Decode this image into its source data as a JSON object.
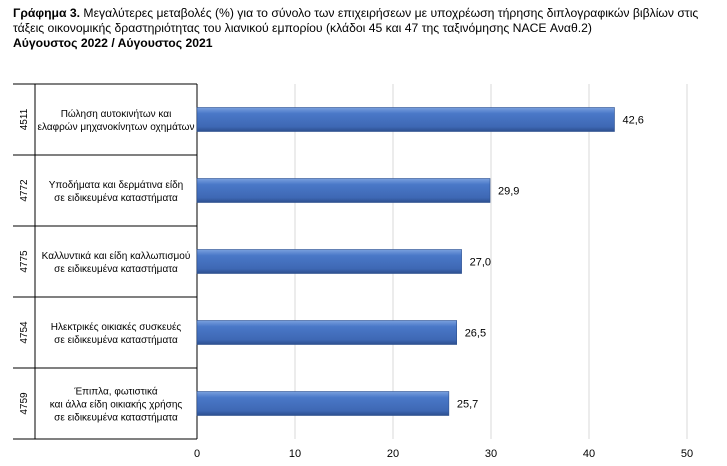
{
  "chart_data": {
    "type": "bar",
    "orientation": "horizontal",
    "title_prefix": "Γράφημα 3.",
    "title": "Μεγαλύτερες μεταβολές (%) για το σύνολο των επιχειρήσεων με υποχρέωση τήρησης διπλογραφικών βιβλίων στις τάξεις οικονομικής δραστηριότητας του λιανικού εμπορίου (κλάδοι 45 και 47 της ταξινόμησης NACE Αναθ.2)",
    "subtitle": "Αύγουστος 2022 / Αύγουστος 2021",
    "categories": [
      {
        "code": "4511",
        "lines": [
          "Πώληση αυτοκινήτων και",
          "ελαφρών μηχανοκίνητων οχημάτων"
        ]
      },
      {
        "code": "4772",
        "lines": [
          "Υποδήματα και δερμάτινα είδη",
          "σε ειδικευμένα καταστήματα"
        ]
      },
      {
        "code": "4775",
        "lines": [
          "Καλλυντικά και είδη καλλωπισμού",
          "σε ειδικευμένα καταστήματα"
        ]
      },
      {
        "code": "4754",
        "lines": [
          "Ηλεκτρικές οικιακές συσκευές",
          "σε ειδικευμένα καταστήματα"
        ]
      },
      {
        "code": "4759",
        "lines": [
          "Έπιπλα, φωτιστικά",
          "και άλλα είδη οικιακής χρήσης",
          "σε ειδικευμένα καταστήματα"
        ]
      }
    ],
    "values": [
      42.6,
      29.9,
      27.0,
      26.5,
      25.7
    ],
    "value_labels": [
      "42,6",
      "29,9",
      "27,0",
      "26,5",
      "25,7"
    ],
    "xlim": [
      0,
      50
    ],
    "xticks": [
      0,
      10,
      20,
      30,
      40,
      50
    ],
    "grid": true,
    "bar_color": "#4472C4"
  }
}
